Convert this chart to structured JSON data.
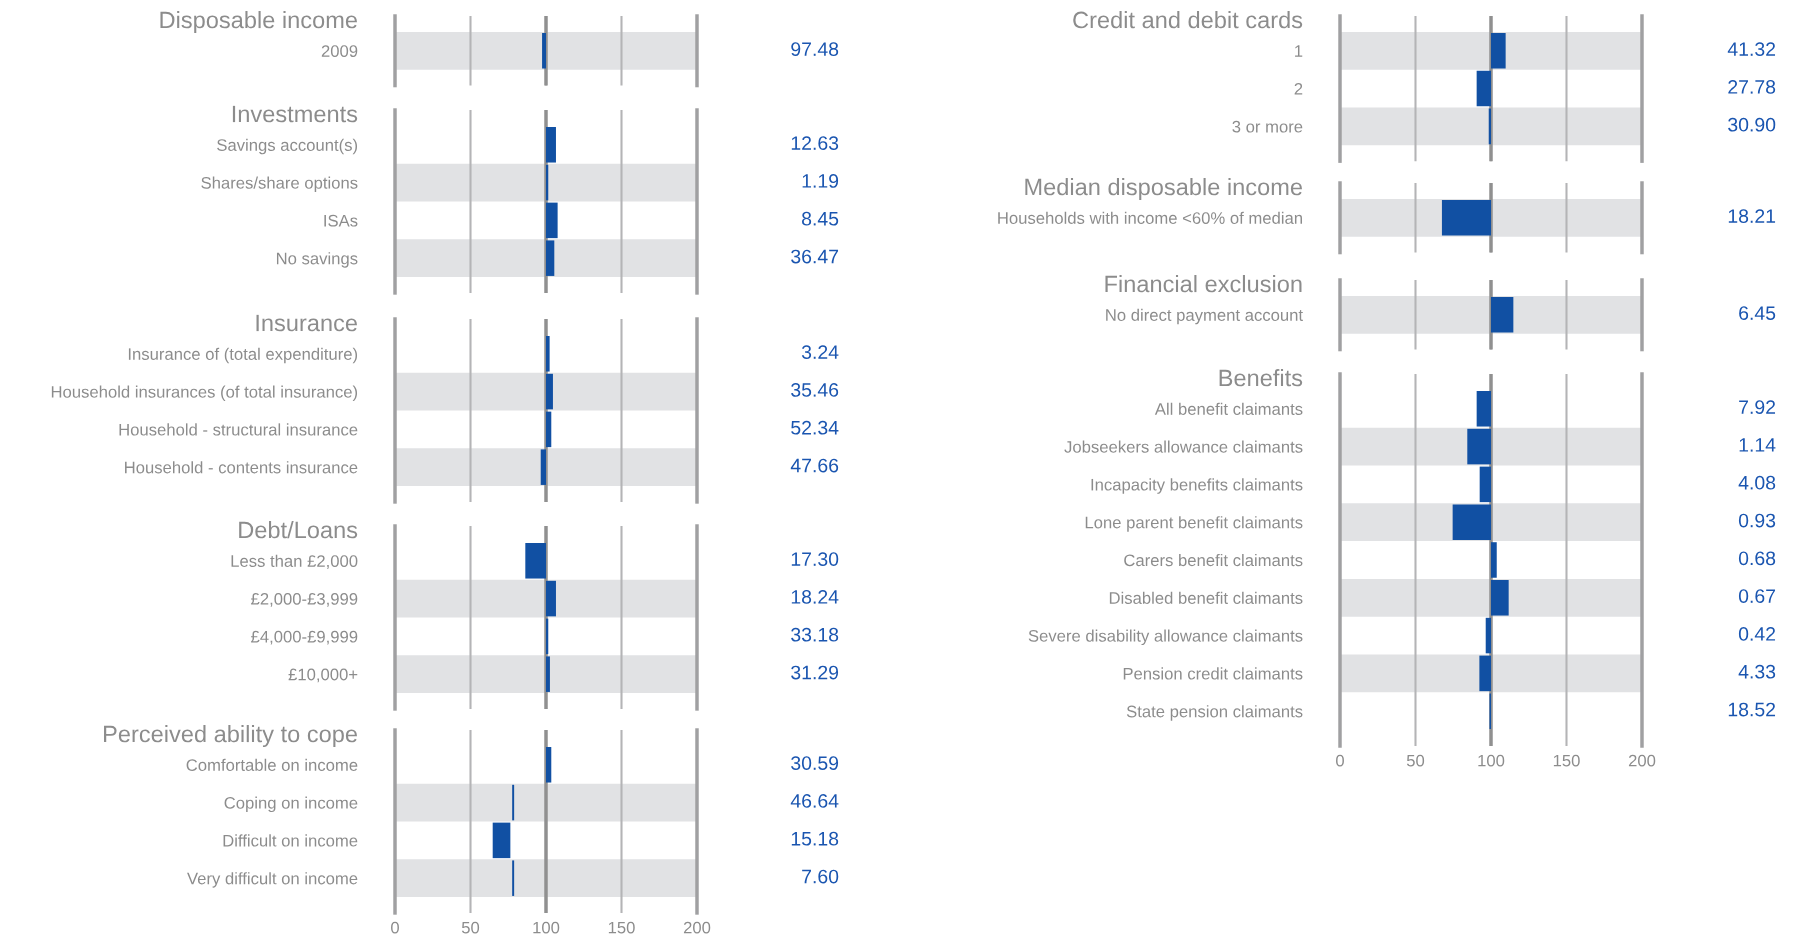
{
  "chart_data": [
    {
      "type": "bar",
      "orientation": "horizontal",
      "title": "Disposable income",
      "categories": [
        "2009"
      ],
      "base": [
        100
      ],
      "values": [
        -2.6
      ],
      "color": "#1150a3",
      "xlim": [
        0,
        200
      ],
      "xticks": [
        0,
        50,
        100,
        150,
        200
      ],
      "grid": "x",
      "tick_labels": "y",
      "ref_lines": [
        {
          "axis": "x",
          "value": 100,
          "color": "#909090"
        }
      ],
      "bands": [
        {
          "axis": "y",
          "from": "2009",
          "to": "2009",
          "color": "#e1e2e4"
        }
      ],
      "annotations": [
        "97.48"
      ]
    },
    {
      "type": "bar",
      "orientation": "horizontal",
      "title": "Investments",
      "categories": [
        "Savings account(s)",
        "Shares/share options",
        "ISAs",
        "No savings"
      ],
      "base": [
        100,
        100,
        100,
        100
      ],
      "values": [
        6.6,
        1.5,
        7.7,
        5.5
      ],
      "color": "#1150a3",
      "xlim": [
        0,
        200
      ],
      "xticks": [
        0,
        50,
        100,
        150,
        200
      ],
      "grid": "x",
      "tick_labels": "y",
      "ref_lines": [
        {
          "axis": "x",
          "value": 100,
          "color": "#909090"
        }
      ],
      "bands": [
        {
          "axis": "y",
          "from": "Shares/share options",
          "to": "Shares/share options",
          "color": "#e1e2e4"
        },
        {
          "axis": "y",
          "from": "No savings",
          "to": "No savings",
          "color": "#e1e2e4"
        }
      ],
      "annotations": [
        "12.63",
        "1.19",
        "8.45",
        "36.47"
      ]
    },
    {
      "type": "bar",
      "orientation": "horizontal",
      "title": "Insurance",
      "categories": [
        "Insurance of (total expenditure)",
        "Household insurances (of total insurance)",
        "Household - structural insurance",
        "Household - contents insurance"
      ],
      "base": [
        100,
        100,
        100,
        100
      ],
      "values": [
        2.4,
        4.6,
        3.5,
        -3.5
      ],
      "color": "#1150a3",
      "xlim": [
        0,
        200
      ],
      "xticks": [
        0,
        50,
        100,
        150,
        200
      ],
      "grid": "x",
      "tick_labels": "y",
      "ref_lines": [
        {
          "axis": "x",
          "value": 100,
          "color": "#909090"
        }
      ],
      "bands": [
        {
          "axis": "y",
          "from": "Household insurances (of total insurance)",
          "to": "Household insurances (of total insurance)",
          "color": "#e1e2e4"
        },
        {
          "axis": "y",
          "from": "Household - contents insurance",
          "to": "Household - contents insurance",
          "color": "#e1e2e4"
        }
      ],
      "annotations": [
        "3.24",
        "35.46",
        "52.34",
        "47.66"
      ]
    },
    {
      "type": "bar",
      "orientation": "horizontal",
      "title": "Debt/Loans",
      "categories": [
        "Less than £2,000",
        "£2,000-£3,999",
        "£4,000-£9,999",
        "£10,000+"
      ],
      "base": [
        100,
        100,
        100,
        100
      ],
      "values": [
        -13.7,
        6.6,
        1.5,
        2.6
      ],
      "color": "#1150a3",
      "xlim": [
        0,
        200
      ],
      "xticks": [
        0,
        50,
        100,
        150,
        200
      ],
      "grid": "x",
      "tick_labels": "y",
      "ref_lines": [
        {
          "axis": "x",
          "value": 100,
          "color": "#909090"
        }
      ],
      "bands": [
        {
          "axis": "y",
          "from": "£2,000-£3,999",
          "to": "£2,000-£3,999",
          "color": "#e1e2e4"
        },
        {
          "axis": "y",
          "from": "£10,000+",
          "to": "£10,000+",
          "color": "#e1e2e4"
        }
      ],
      "annotations": [
        "17.30",
        "18.24",
        "33.18",
        "31.29"
      ]
    },
    {
      "type": "bar",
      "orientation": "horizontal",
      "title": "Perceived ability to cope",
      "categories": [
        "Comfortable on income",
        "Coping on income",
        "Difficult on income",
        "Very difficult on income"
      ],
      "base": [
        100,
        77.6,
        64.7,
        77.6
      ],
      "values": [
        3.5,
        1.3,
        11.7,
        1.3
      ],
      "color": "#1150a3",
      "xlim": [
        0,
        200
      ],
      "xticks": [
        0,
        50,
        100,
        150,
        200
      ],
      "grid": "x",
      "ref_lines": [
        {
          "axis": "x",
          "value": 100,
          "color": "#909090"
        }
      ],
      "bands": [
        {
          "axis": "y",
          "from": "Coping on income",
          "to": "Coping on income",
          "color": "#e1e2e4"
        },
        {
          "axis": "y",
          "from": "Very difficult on income",
          "to": "Very difficult on income",
          "color": "#e1e2e4"
        }
      ],
      "annotations": [
        "30.59",
        "46.64",
        "15.18",
        "7.60"
      ]
    },
    {
      "type": "bar",
      "orientation": "horizontal",
      "title": "Credit and debit cards",
      "categories": [
        "1",
        "2",
        "3 or more"
      ],
      "base": [
        100,
        100,
        100
      ],
      "values": [
        9.7,
        -9.5,
        -1.5
      ],
      "color": "#1150a3",
      "xlim": [
        0,
        200
      ],
      "xticks": [
        0,
        50,
        100,
        150,
        200
      ],
      "grid": "x",
      "tick_labels": "y",
      "ref_lines": [
        {
          "axis": "x",
          "value": 100,
          "color": "#909090"
        }
      ],
      "bands": [
        {
          "axis": "y",
          "from": "1",
          "to": "1",
          "color": "#e1e2e4"
        },
        {
          "axis": "y",
          "from": "3 or more",
          "to": "3 or more",
          "color": "#e1e2e4"
        }
      ],
      "annotations": [
        "41.32",
        "27.78",
        "30.90"
      ]
    },
    {
      "type": "bar",
      "orientation": "horizontal",
      "title": "Median disposable income",
      "categories": [
        "Households with income <60% of median"
      ],
      "base": [
        100
      ],
      "values": [
        -32.5
      ],
      "color": "#1150a3",
      "xlim": [
        0,
        200
      ],
      "xticks": [
        0,
        50,
        100,
        150,
        200
      ],
      "grid": "x",
      "tick_labels": "y",
      "ref_lines": [
        {
          "axis": "x",
          "value": 100,
          "color": "#909090"
        }
      ],
      "bands": [
        {
          "axis": "y",
          "from": "Households with income <60% of median",
          "to": "Households with income <60% of median",
          "color": "#e1e2e4"
        }
      ],
      "annotations": [
        "18.21"
      ]
    },
    {
      "type": "bar",
      "orientation": "horizontal",
      "title": "Financial exclusion",
      "categories": [
        "No direct payment account"
      ],
      "base": [
        100
      ],
      "values": [
        14.8
      ],
      "color": "#1150a3",
      "xlim": [
        0,
        200
      ],
      "xticks": [
        0,
        50,
        100,
        150,
        200
      ],
      "grid": "x",
      "tick_labels": "y",
      "ref_lines": [
        {
          "axis": "x",
          "value": 100,
          "color": "#909090"
        }
      ],
      "bands": [
        {
          "axis": "y",
          "from": "No direct payment account",
          "to": "No direct payment account",
          "color": "#e1e2e4"
        }
      ],
      "annotations": [
        "6.45"
      ]
    },
    {
      "type": "bar",
      "orientation": "horizontal",
      "title": "Benefits",
      "categories": [
        "All benefit claimants",
        "Jobseekers allowance claimants",
        "Incapacity benefits claimants",
        "Lone parent benefit claimants",
        "Carers benefit claimants",
        "Disabled benefit claimants",
        "Severe disability allowance claimants",
        "Pension credit claimants",
        "State pension claimants"
      ],
      "base": [
        100,
        100,
        100,
        100,
        100,
        100,
        100,
        100,
        100
      ],
      "values": [
        -9.5,
        -15.7,
        -7.5,
        -25.4,
        3.8,
        11.7,
        -3.5,
        -7.7,
        -1.0
      ],
      "color": "#1150a3",
      "xlim": [
        0,
        200
      ],
      "xticks": [
        0,
        50,
        100,
        150,
        200
      ],
      "grid": "x",
      "ref_lines": [
        {
          "axis": "x",
          "value": 100,
          "color": "#909090"
        }
      ],
      "bands": [
        {
          "axis": "y",
          "from": "Jobseekers allowance claimants",
          "to": "Jobseekers allowance claimants",
          "color": "#e1e2e4"
        },
        {
          "axis": "y",
          "from": "Lone parent benefit claimants",
          "to": "Lone parent benefit claimants",
          "color": "#e1e2e4"
        },
        {
          "axis": "y",
          "from": "Disabled benefit claimants",
          "to": "Disabled benefit claimants",
          "color": "#e1e2e4"
        },
        {
          "axis": "y",
          "from": "Pension credit claimants",
          "to": "Pension credit claimants",
          "color": "#e1e2e4"
        }
      ],
      "annotations": [
        "7.92",
        "1.14",
        "4.08",
        "0.93",
        "0.68",
        "0.67",
        "0.42",
        "4.33",
        "18.52"
      ]
    }
  ]
}
